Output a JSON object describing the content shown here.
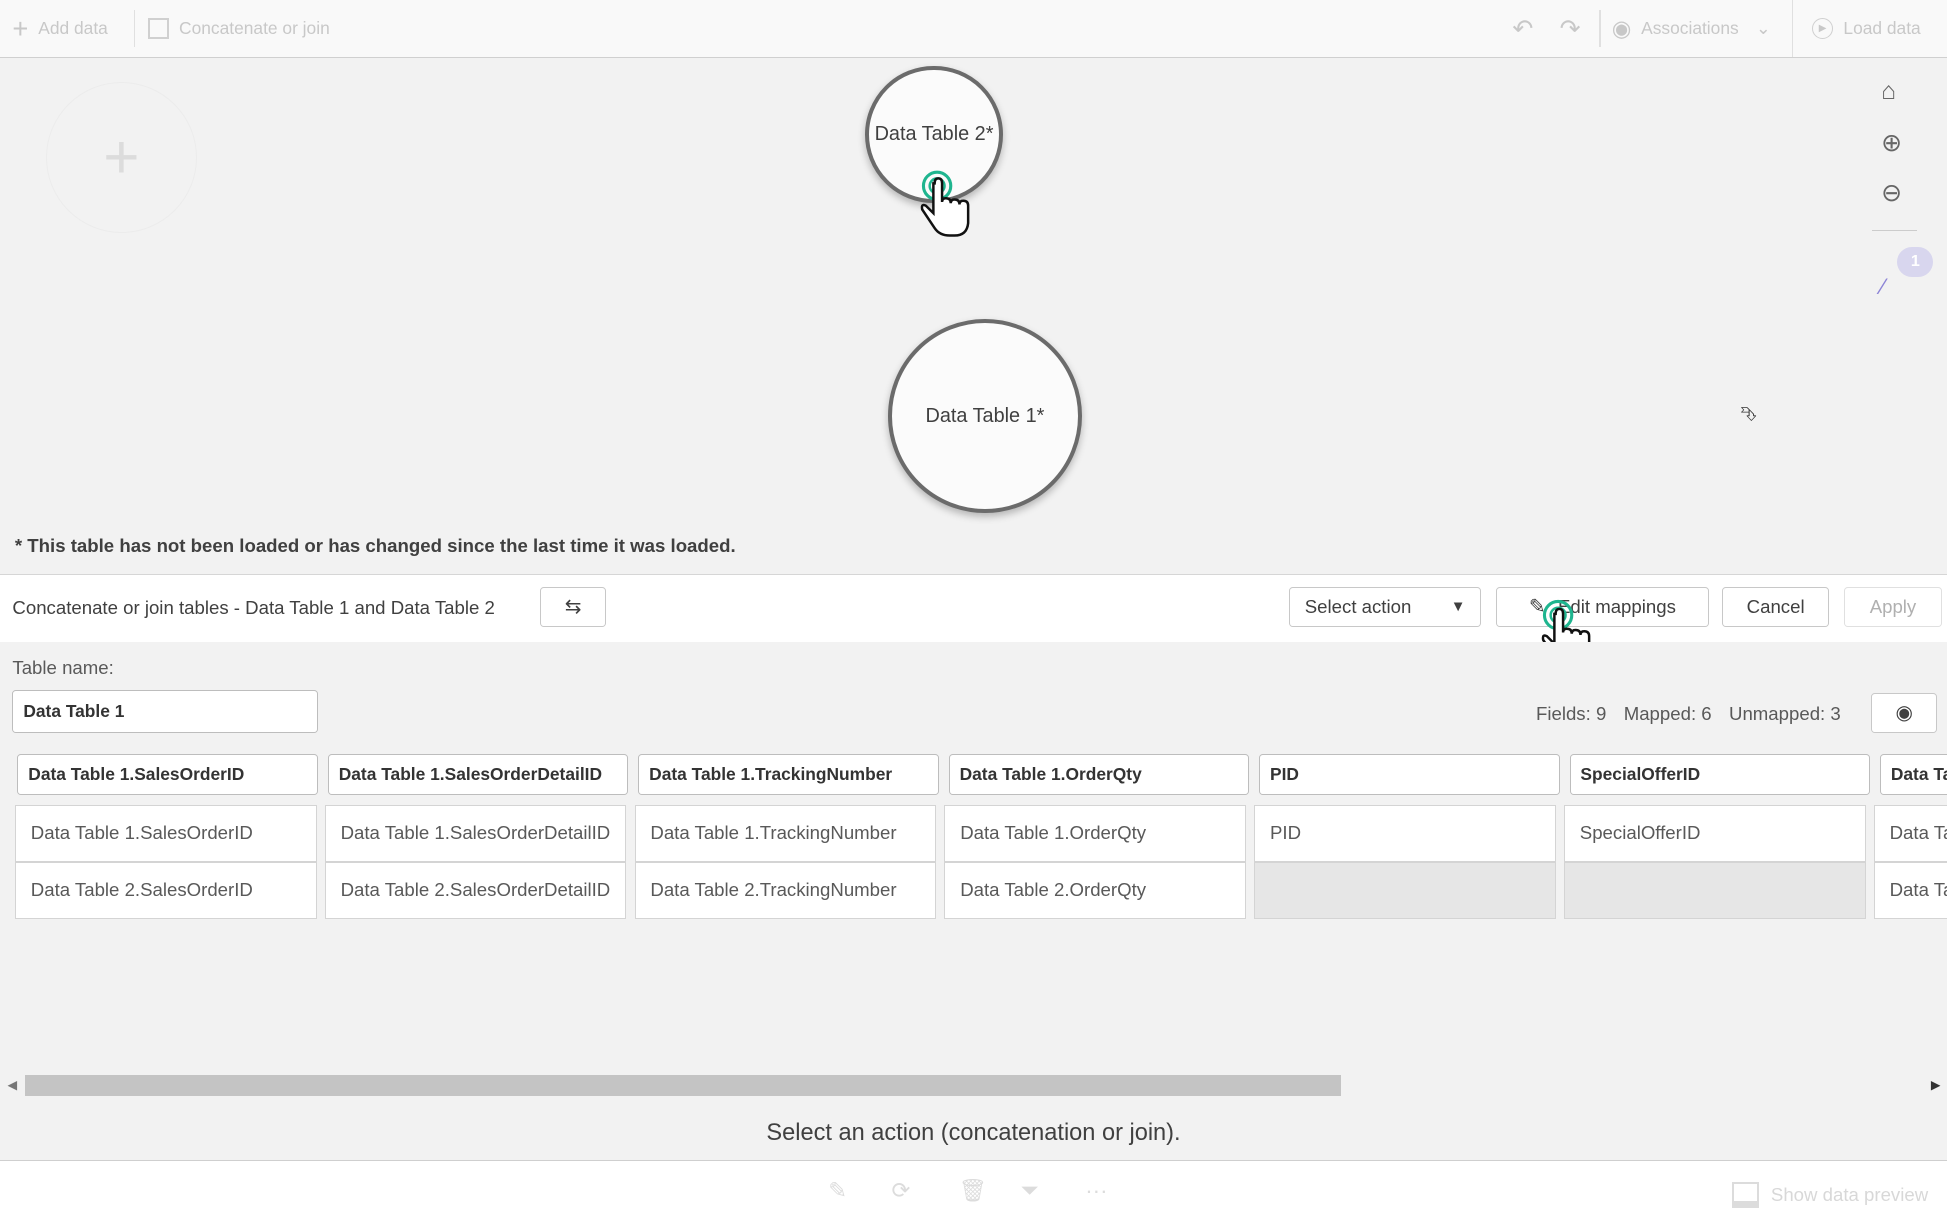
{
  "toolbar": {
    "add_data": "Add data",
    "concat_join": "Concatenate or join",
    "associations": "Associations",
    "load_data": "Load data"
  },
  "canvas": {
    "nodes": [
      {
        "label": "Data Table 2*"
      },
      {
        "label": "Data Table 1*"
      }
    ],
    "note": "* This table has not been loaded or has changed since the last time it was loaded.",
    "badge_count": "1"
  },
  "panel": {
    "title": "Concatenate or join tables - Data Table 1 and Data Table 2",
    "select_action": "Select action",
    "edit_mappings": "Edit mappings",
    "cancel": "Cancel",
    "apply": "Apply",
    "table_name_label": "Table name:",
    "table_name_value": "Data Table 1",
    "fields": "Fields: 9",
    "mapped": "Mapped: 6",
    "unmapped": "Unmapped: 3",
    "columns": [
      {
        "header": "Data Table 1.SalesOrderID",
        "row1": "Data Table 1.SalesOrderID",
        "row2": "Data Table 2.SalesOrderID"
      },
      {
        "header": "Data Table 1.SalesOrderDetailID",
        "row1": "Data Table 1.SalesOrderDetailID",
        "row2": "Data Table 2.SalesOrderDetailID"
      },
      {
        "header": "Data Table 1.TrackingNumber",
        "row1": "Data Table 1.TrackingNumber",
        "row2": "Data Table 2.TrackingNumber"
      },
      {
        "header": "Data Table 1.OrderQty",
        "row1": "Data Table 1.OrderQty",
        "row2": "Data Table 2.OrderQty"
      },
      {
        "header": "PID",
        "row1": "PID",
        "row2": ""
      },
      {
        "header": "SpecialOfferID",
        "row1": "SpecialOfferID",
        "row2": ""
      },
      {
        "header": "Data Ta",
        "row1": "Data Ta",
        "row2": "Data Ta"
      }
    ],
    "status": "Select an action (concatenation or join)."
  },
  "bottom": {
    "show_preview": "Show data preview"
  },
  "colors": {
    "accent_cursor": "#1fb58f",
    "badge": "#d8d6ee",
    "wand": "#8c84d6"
  }
}
